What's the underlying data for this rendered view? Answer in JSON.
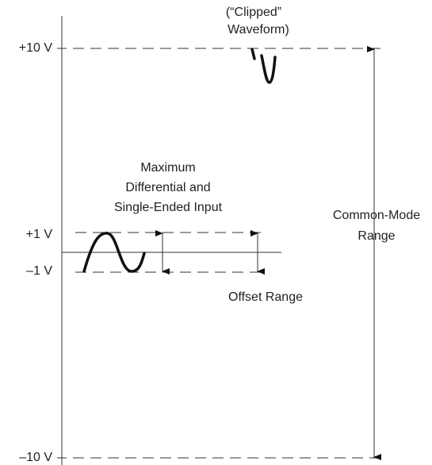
{
  "voltage_labels": {
    "plus10": "+10 V",
    "plus1": "+1 V",
    "minus1": "–1 V",
    "minus10": "–10 V"
  },
  "annotations": {
    "clipped_line1": "(“Clipped”",
    "clipped_line2": "Waveform)",
    "max_line1": "Maximum",
    "max_line2": "Differential and",
    "max_line3": "Single-Ended Input",
    "cm_line1": "Common-Mode",
    "cm_line2": "Range",
    "offset": "Offset Range"
  }
}
